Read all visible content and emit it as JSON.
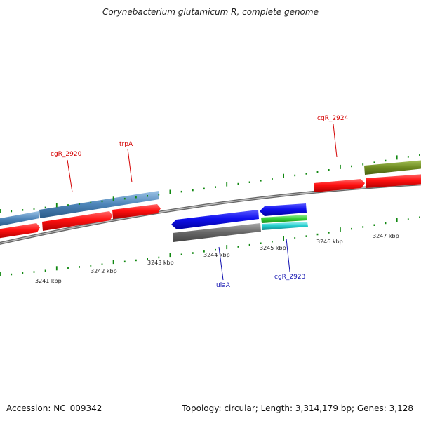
{
  "title": "Corynebacterium glutamicum R, complete genome",
  "footer": {
    "accession": "Accession: NC_009342",
    "summary": "Topology: circular; Length: 3,314,179 bp; Genes: 3,128"
  },
  "ticks": [
    "3241 kbp",
    "3242 kbp",
    "3243 kbp",
    "3244 kbp",
    "3245 kbp",
    "3246 kbp",
    "3247 kbp"
  ],
  "gene_labels": {
    "cgR_2920": "cgR_2920",
    "trpA": "trpA",
    "cgR_2924": "cgR_2924",
    "ulaA": "ulaA",
    "cgR_2923": "cgR_2923"
  },
  "colors": {
    "forward_gene": "#ee1111",
    "reverse_gene": "#1010dd",
    "backbone": "#888888",
    "tick": "#118811",
    "feature_steelblue": "#4d84b8",
    "feature_olive": "#6f8c22",
    "feature_gray": "#666666",
    "feature_green": "#33cc33",
    "feature_cyan": "#22cccc"
  }
}
